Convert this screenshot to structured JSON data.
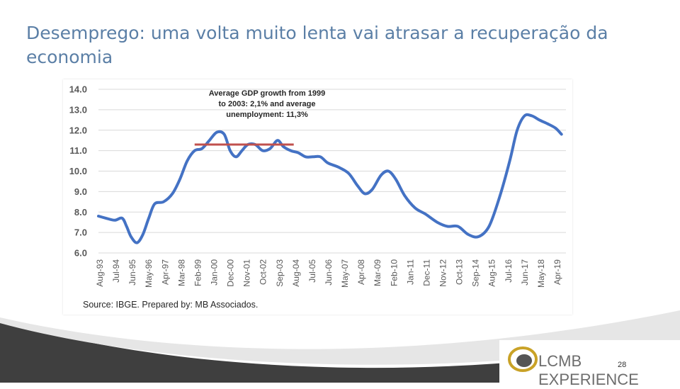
{
  "slide": {
    "title": "Desemprego: uma volta muito lenta vai atrasar a recuperação da economia",
    "page_number": "28",
    "logo_text": "LCMB EXPERIENCE"
  },
  "colors": {
    "title": "#5b7fa6",
    "series": "#4472c4",
    "average_line": "#c0504d",
    "grid": "#d9d9d9",
    "footer_dark": "#3f3f3f",
    "footer_light": "#d9d9d9"
  },
  "chart_data": {
    "type": "line",
    "annotation_lines": [
      "Average GDP growth from 1999",
      "to 2003: 2,1% and average",
      "unemployment: 11,3%"
    ],
    "source": "Source: IBGE. Prepared by: MB Associados.",
    "ylim": [
      6.0,
      14.0
    ],
    "yticks": [
      "14.0",
      "13.0",
      "12.0",
      "11.0",
      "10.0",
      "9.0",
      "8.0",
      "7.0",
      "6.0"
    ],
    "xtick_labels": [
      "Aug-93",
      "Jul-94",
      "Jun-95",
      "May-96",
      "Apr-97",
      "Mar-98",
      "Feb-99",
      "Jan-00",
      "Dec-00",
      "Nov-01",
      "Oct-02",
      "Sep-03",
      "Aug-04",
      "Jul-05",
      "Jun-06",
      "May-07",
      "Apr-08",
      "Mar-09",
      "Feb-10",
      "Jan-11",
      "Dec-11",
      "Nov-12",
      "Oct-13",
      "Sep-14",
      "Aug-15",
      "Jul-16",
      "Jun-17",
      "May-18",
      "Apr-19"
    ],
    "grid": true,
    "series": [
      {
        "points": [
          [
            "1993-08",
            7.8
          ],
          [
            "1994-01",
            7.7
          ],
          [
            "1994-07",
            7.6
          ],
          [
            "1994-12",
            7.7
          ],
          [
            "1995-03",
            7.3
          ],
          [
            "1995-06",
            6.8
          ],
          [
            "1995-10",
            6.5
          ],
          [
            "1996-02",
            6.9
          ],
          [
            "1996-06",
            7.7
          ],
          [
            "1996-10",
            8.4
          ],
          [
            "1997-04",
            8.5
          ],
          [
            "1997-10",
            8.9
          ],
          [
            "1998-03",
            9.6
          ],
          [
            "1998-08",
            10.5
          ],
          [
            "1999-01",
            11.0
          ],
          [
            "1999-06",
            11.1
          ],
          [
            "1999-11",
            11.5
          ],
          [
            "2000-04",
            11.9
          ],
          [
            "2000-09",
            11.8
          ],
          [
            "2001-01",
            11.0
          ],
          [
            "2001-05",
            10.7
          ],
          [
            "2001-09",
            11.0
          ],
          [
            "2002-01",
            11.3
          ],
          [
            "2002-06",
            11.3
          ],
          [
            "2002-11",
            11.0
          ],
          [
            "2003-04",
            11.1
          ],
          [
            "2003-09",
            11.5
          ],
          [
            "2004-01",
            11.2
          ],
          [
            "2004-06",
            11.0
          ],
          [
            "2004-11",
            10.9
          ],
          [
            "2005-04",
            10.7
          ],
          [
            "2005-09",
            10.7
          ],
          [
            "2006-02",
            10.7
          ],
          [
            "2006-07",
            10.4
          ],
          [
            "2007-02",
            10.2
          ],
          [
            "2007-09",
            9.9
          ],
          [
            "2008-03",
            9.3
          ],
          [
            "2008-08",
            8.9
          ],
          [
            "2009-01",
            9.1
          ],
          [
            "2009-07",
            9.8
          ],
          [
            "2009-12",
            10.0
          ],
          [
            "2010-05",
            9.6
          ],
          [
            "2010-11",
            8.8
          ],
          [
            "2011-06",
            8.2
          ],
          [
            "2012-01",
            7.9
          ],
          [
            "2012-09",
            7.5
          ],
          [
            "2013-04",
            7.3
          ],
          [
            "2013-11",
            7.3
          ],
          [
            "2014-06",
            6.9
          ],
          [
            "2015-01",
            6.8
          ],
          [
            "2015-08",
            7.3
          ],
          [
            "2016-03",
            8.7
          ],
          [
            "2016-10",
            10.5
          ],
          [
            "2017-03",
            12.0
          ],
          [
            "2017-08",
            12.7
          ],
          [
            "2018-01",
            12.7
          ],
          [
            "2018-06",
            12.5
          ],
          [
            "2018-12",
            12.3
          ],
          [
            "2019-05",
            12.1
          ],
          [
            "2019-09",
            11.8
          ]
        ]
      },
      {
        "type": "average_line",
        "x_start": "1999-01",
        "x_end": "2004-08",
        "value": 11.3
      }
    ]
  }
}
